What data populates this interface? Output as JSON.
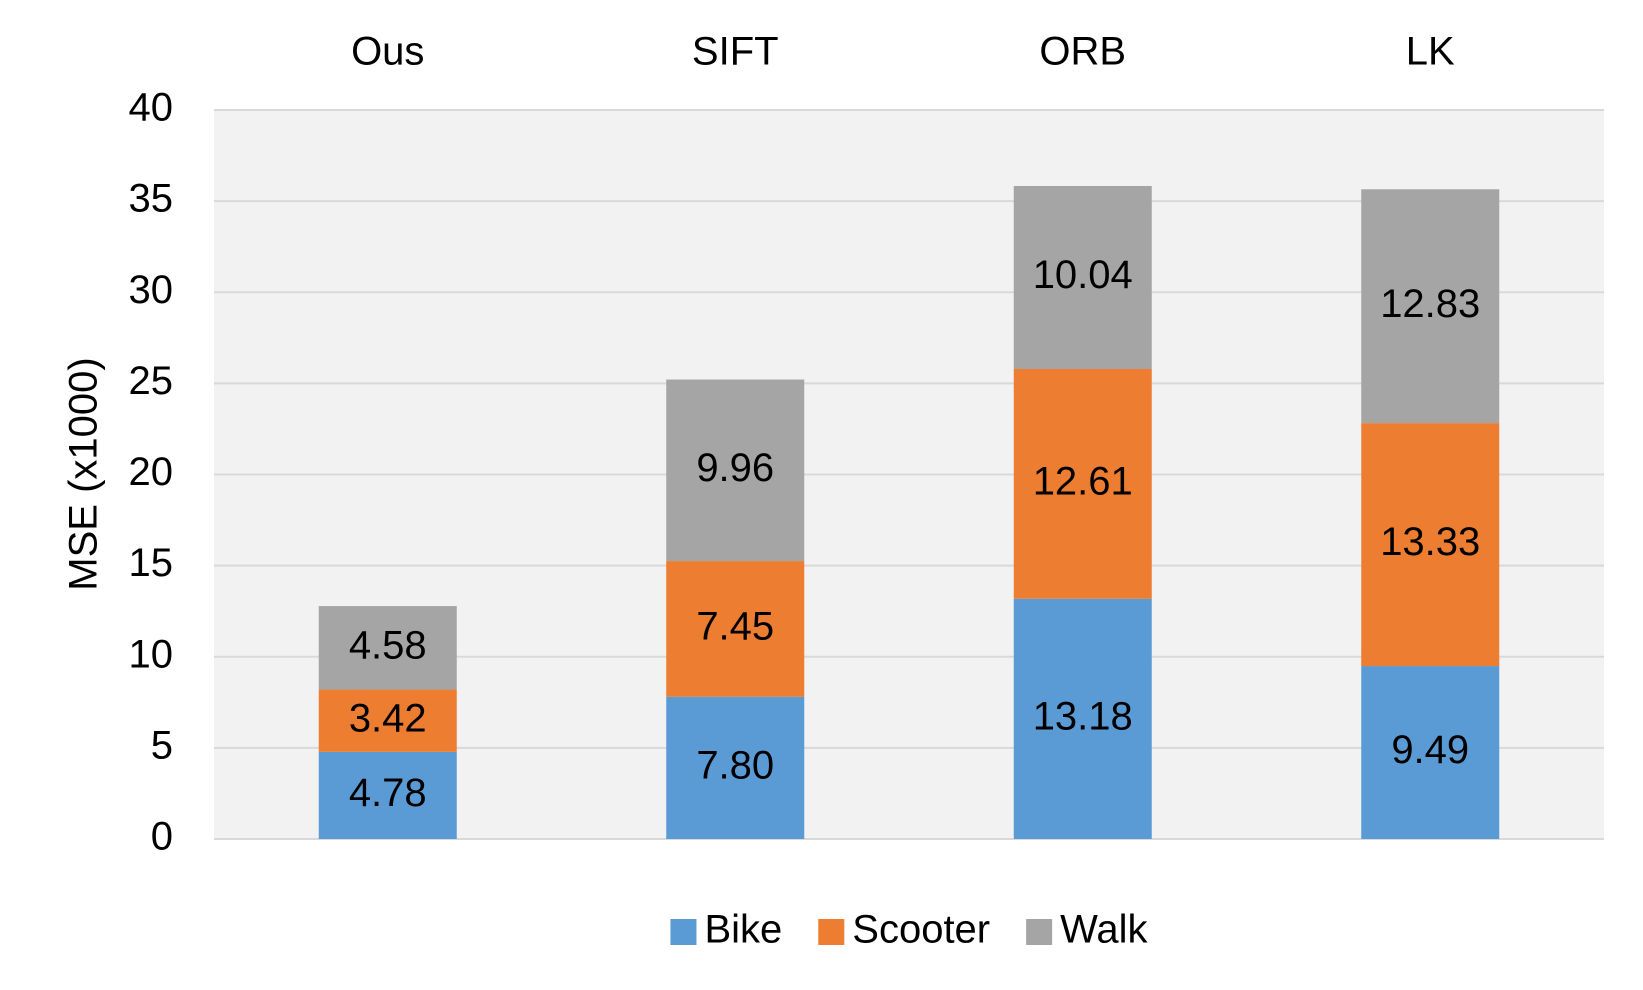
{
  "chart_data": {
    "type": "bar",
    "stacked": true,
    "categories": [
      "Ous",
      "SIFT",
      "ORB",
      "LK"
    ],
    "category_label_position": "top",
    "series": [
      {
        "name": "Bike",
        "color": "#5B9BD5",
        "values": [
          4.78,
          7.8,
          13.18,
          9.49
        ],
        "labels": [
          "4.78",
          "7.80",
          "13.18",
          "9.49"
        ]
      },
      {
        "name": "Scooter",
        "color": "#ED7D31",
        "values": [
          3.42,
          7.45,
          12.61,
          13.33
        ],
        "labels": [
          "3.42",
          "7.45",
          "12.61",
          "13.33"
        ]
      },
      {
        "name": "Walk",
        "color": "#A5A5A5",
        "values": [
          4.58,
          9.96,
          10.04,
          12.83
        ],
        "labels": [
          "4.58",
          "9.96",
          "10.04",
          "12.83"
        ]
      }
    ],
    "ylabel": "MSE (x1000)",
    "ylim": [
      0,
      40
    ],
    "yticks": [
      0,
      5,
      10,
      15,
      20,
      25,
      30,
      35,
      40
    ],
    "grid": true,
    "plot_background": "#F2F2F2",
    "gridline_color": "#D9D9D9",
    "legend_position": "bottom-center"
  }
}
